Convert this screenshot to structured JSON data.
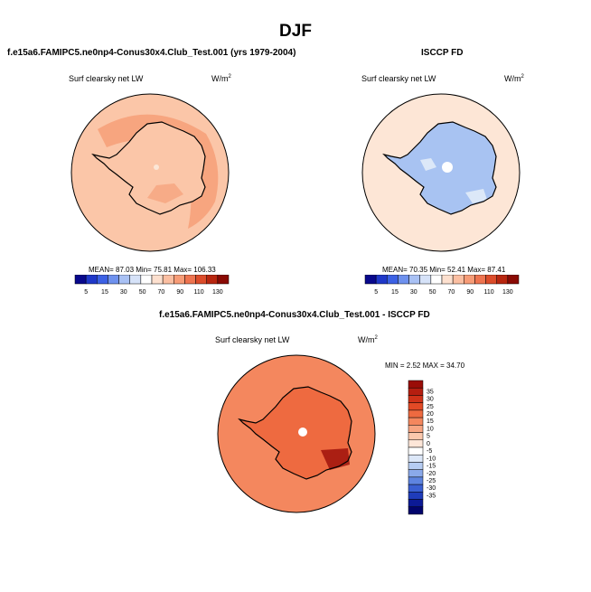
{
  "figure": {
    "title": "DJF",
    "fill_colors": {
      "5": "#1e24b8",
      "15": "#2f4fd6",
      "30": "#5c86e6",
      "50": "#a8c3f2",
      "70": "#dce8f8",
      "90": "#fde6d6",
      "110": "#fbc6a8",
      "130": "#f59a72",
      "150": "#f08060",
      "170": "#e4603a",
      "190": "#c8401e",
      "210": "#9a1e0a"
    }
  },
  "chart_data": [
    {
      "type": "heatmap",
      "title": "f.e15a6.FAMIPC5.ne0np4-Conus30x4.Club_Test.001 (yrs 1979-2004)",
      "variable": "Surf clearsky net LW",
      "units": "W/m",
      "units_exp": "2",
      "projection": "south-polar stereographic",
      "stats": {
        "mean": 87.03,
        "min": 75.81,
        "max": 106.33,
        "text": "MEAN= 87.03  Min= 75.81  Max= 106.33"
      },
      "colorbar": {
        "orientation": "horizontal",
        "ticks": [
          "5",
          "15",
          "30",
          "50",
          "70",
          "90",
          "110",
          "130"
        ],
        "colors": [
          "#08088c",
          "#1f38c9",
          "#3c61e4",
          "#6e91ee",
          "#a9c1f4",
          "#d6e2f8",
          "#ffffff",
          "#fde0cf",
          "#fbbfa2",
          "#f79c77",
          "#ee7450",
          "#dc4c2a",
          "#b8260f",
          "#8a0a04"
        ]
      },
      "regions": [
        {
          "region": "ocean",
          "approx_value": 87
        },
        {
          "region": "southern-ocean-band",
          "approx_value": 100
        },
        {
          "region": "antarctica",
          "approx_value": 92
        }
      ]
    },
    {
      "type": "heatmap",
      "title": "ISCCP FD",
      "variable": "Surf clearsky net LW",
      "units": "W/m",
      "units_exp": "2",
      "projection": "south-polar stereographic",
      "stats": {
        "mean": 70.35,
        "min": 52.41,
        "max": 87.41,
        "text": "MEAN= 70.35  Min= 52.41  Max= 87.41"
      },
      "colorbar": {
        "orientation": "horizontal",
        "ticks": [
          "5",
          "15",
          "30",
          "50",
          "70",
          "90",
          "110",
          "130"
        ],
        "colors": [
          "#08088c",
          "#1f38c9",
          "#3c61e4",
          "#6e91ee",
          "#a9c1f4",
          "#d6e2f8",
          "#ffffff",
          "#fde0cf",
          "#fbbfa2",
          "#f79c77",
          "#ee7450",
          "#dc4c2a",
          "#b8260f",
          "#8a0a04"
        ]
      },
      "regions": [
        {
          "region": "ocean",
          "approx_value": 80
        },
        {
          "region": "antarctica",
          "approx_value": 68
        }
      ]
    },
    {
      "type": "heatmap",
      "title": "f.e15a6.FAMIPC5.ne0np4-Conus30x4.Club_Test.001 - ISCCP FD",
      "variable": "Surf clearsky net LW",
      "units": "W/m",
      "units_exp": "2",
      "projection": "south-polar stereographic",
      "stats": {
        "min": 2.52,
        "max": 34.7,
        "text": "MIN =  2.52 MAX =  34.70"
      },
      "colorbar": {
        "orientation": "vertical",
        "ticks": [
          "35",
          "30",
          "25",
          "20",
          "15",
          "10",
          "5",
          "0",
          "-5",
          "-10",
          "-15",
          "-20",
          "-25",
          "-30",
          "-35"
        ],
        "colors": [
          "#9a0d07",
          "#b51e10",
          "#cf3219",
          "#e24a26",
          "#ee6a40",
          "#f4875e",
          "#f7a582",
          "#fbc8ad",
          "#fde6d8",
          "#ffffff",
          "#dce7f8",
          "#b6ccf2",
          "#8aa9ea",
          "#5e84e0",
          "#3a5fd2",
          "#1f3cba",
          "#0c1a96",
          "#02046c"
        ]
      },
      "regions": [
        {
          "region": "ocean",
          "approx_value": 17
        },
        {
          "region": "antarctica",
          "approx_value": 22
        }
      ]
    }
  ]
}
